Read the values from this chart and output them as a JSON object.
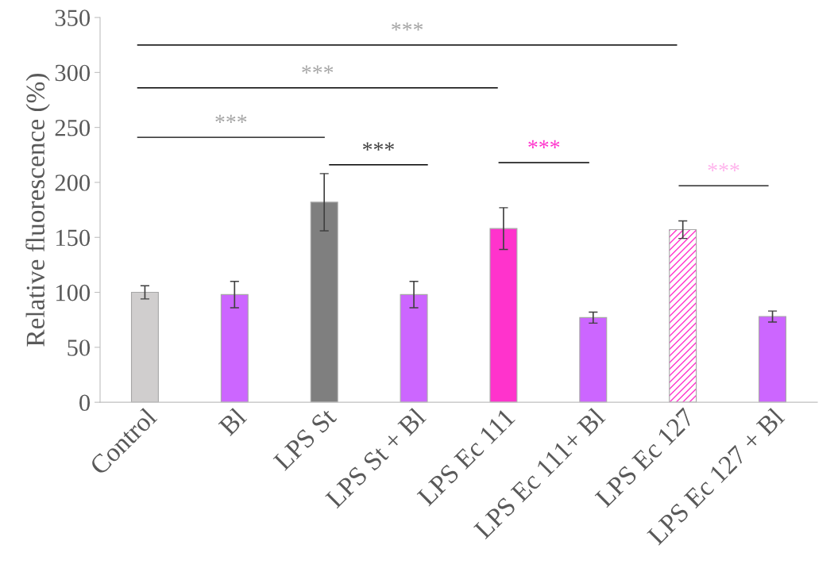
{
  "chart_data": {
    "type": "bar",
    "ylabel": "Relative fluorescence (%)",
    "categories": [
      "Control",
      "Bl",
      "LPS St",
      "LPS St + Bl",
      "LPS Ec 111",
      "LPS Ec 111+ Bl",
      "LPS Ec 127",
      "LPS Ec 127 + Bl"
    ],
    "values": [
      100,
      98,
      182,
      98,
      158,
      77,
      157,
      78
    ],
    "errors": [
      6,
      12,
      26,
      12,
      19,
      5,
      8,
      5
    ],
    "colors": [
      "#d0cece",
      "#cc66ff",
      "#7f7f7f",
      "#cc66ff",
      "#ff33cc",
      "#cc66ff",
      "#ff33cc",
      "#cc66ff"
    ],
    "ylim": [
      0,
      350
    ],
    "yticks": [
      0,
      50,
      100,
      150,
      200,
      250,
      300,
      350
    ],
    "grid": false,
    "annotations": [
      "***",
      "***",
      "***",
      "***",
      "***",
      "***"
    ]
  }
}
